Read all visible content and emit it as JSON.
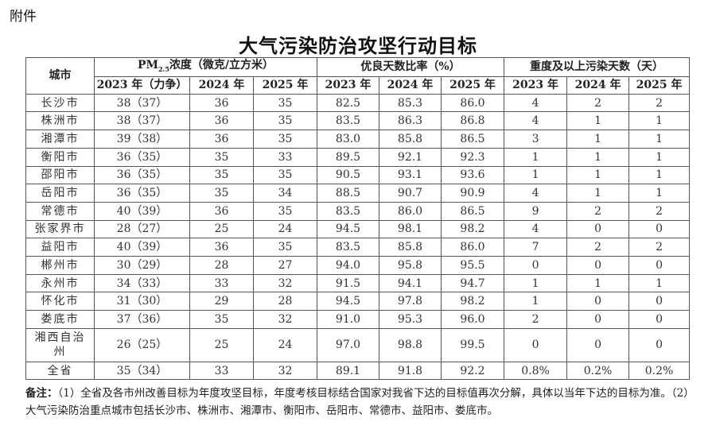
{
  "attachment_label": "附件",
  "title": "大气污染防治攻坚行动目标",
  "header": {
    "city": "城市",
    "pm_prefix": "PM",
    "pm_sub": "2.5",
    "pm_suffix": "浓度（微克/立方米）",
    "good": "优良天数比率（%）",
    "heavy": "重度及以上污染天数（天）",
    "pm_years": [
      "2023 年（力争）",
      "2024 年",
      "2025 年"
    ],
    "good_years": [
      "2023 年",
      "2024 年",
      "2025 年"
    ],
    "heavy_years": [
      "2023 年",
      "2024 年",
      "2025 年"
    ]
  },
  "rows": [
    [
      "长沙市",
      "38（37）",
      "36",
      "35",
      "82.5",
      "85.3",
      "86.0",
      "4",
      "2",
      "2"
    ],
    [
      "株洲市",
      "38（37）",
      "36",
      "35",
      "83.5",
      "86.3",
      "86.8",
      "4",
      "1",
      "1"
    ],
    [
      "湘潭市",
      "39（38）",
      "36",
      "35",
      "83.0",
      "85.8",
      "86.5",
      "3",
      "1",
      "1"
    ],
    [
      "衡阳市",
      "36（35）",
      "35",
      "33",
      "89.5",
      "92.1",
      "92.3",
      "1",
      "1",
      "1"
    ],
    [
      "邵阳市",
      "36（35）",
      "35",
      "35",
      "90.5",
      "93.1",
      "93.6",
      "1",
      "1",
      "1"
    ],
    [
      "岳阳市",
      "36（35）",
      "35",
      "34",
      "88.5",
      "90.7",
      "90.9",
      "4",
      "1",
      "1"
    ],
    [
      "常德市",
      "40（39）",
      "36",
      "35",
      "83.5",
      "86.0",
      "86.5",
      "9",
      "2",
      "2"
    ],
    [
      "张家界市",
      "28（27）",
      "25",
      "24",
      "94.5",
      "98.1",
      "98.2",
      "4",
      "0",
      "0"
    ],
    [
      "益阳市",
      "40（39）",
      "36",
      "35",
      "83.5",
      "85.8",
      "86.0",
      "7",
      "2",
      "2"
    ],
    [
      "郴州市",
      "30（29）",
      "28",
      "27",
      "94.0",
      "95.8",
      "95.5",
      "0",
      "0",
      "0"
    ],
    [
      "永州市",
      "34（33）",
      "33",
      "32",
      "91.5",
      "94.1",
      "94.7",
      "1",
      "1",
      "1"
    ],
    [
      "怀化市",
      "31（30）",
      "29",
      "28",
      "94.5",
      "97.8",
      "98.2",
      "1",
      "0",
      "0"
    ],
    [
      "娄底市",
      "37（36）",
      "35",
      "32",
      "91.0",
      "95.3",
      "96.0",
      "2",
      "0",
      "0"
    ],
    [
      "湘西自治州",
      "26（25）",
      "25",
      "24",
      "97.0",
      "98.8",
      "99.5",
      "0",
      "0",
      "0"
    ],
    [
      "全省",
      "35（34）",
      "33",
      "32",
      "89.1",
      "91.8",
      "92.2",
      "0.8%",
      "0.2%",
      "0.2%"
    ]
  ],
  "notes": {
    "label": "备注：",
    "text": "（1）全省及各市州改善目标为年度攻坚目标，年度考核目标结合国家对我省下达的目标值再次分解，具体以当年下达的目标为准。（2）大气污染防治重点城市包括长沙市、株洲市、湘潭市、衡阳市、岳阳市、常德市、益阳市、娄底市。"
  }
}
